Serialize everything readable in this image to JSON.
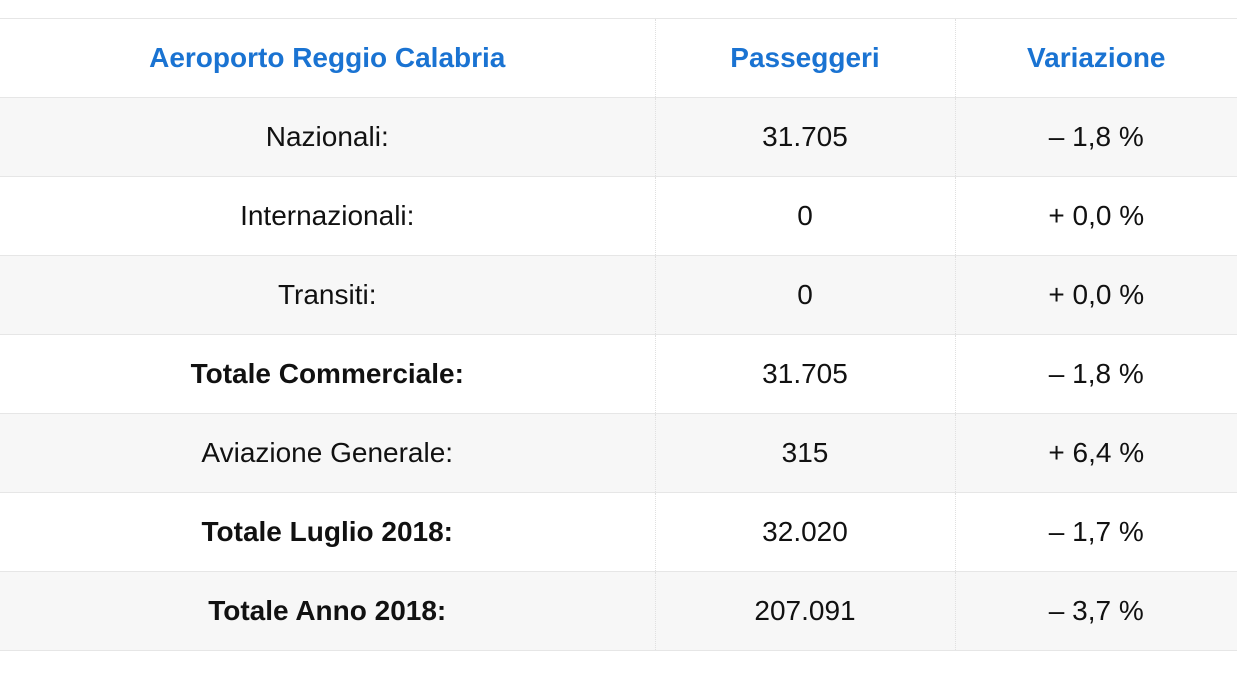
{
  "table": {
    "header": [
      "Aeroporto Reggio Calabria",
      "Passeggeri",
      "Variazione"
    ],
    "rows": [
      [
        "Nazionali:",
        "31.705",
        "– 1,8 %"
      ],
      [
        "Internazionali:",
        "0",
        "+ 0,0 %"
      ],
      [
        "Transiti:",
        "0",
        "+ 0,0 %"
      ],
      [
        "Totale Commerciale:",
        "31.705",
        "– 1,8 %"
      ],
      [
        "Aviazione Generale:",
        "315",
        "+ 6,4 %"
      ],
      [
        "Totale Luglio 2018:",
        "32.020",
        "– 1,7 %"
      ],
      [
        "Totale Anno 2018:",
        "207.091",
        "– 3,7 %"
      ]
    ]
  }
}
